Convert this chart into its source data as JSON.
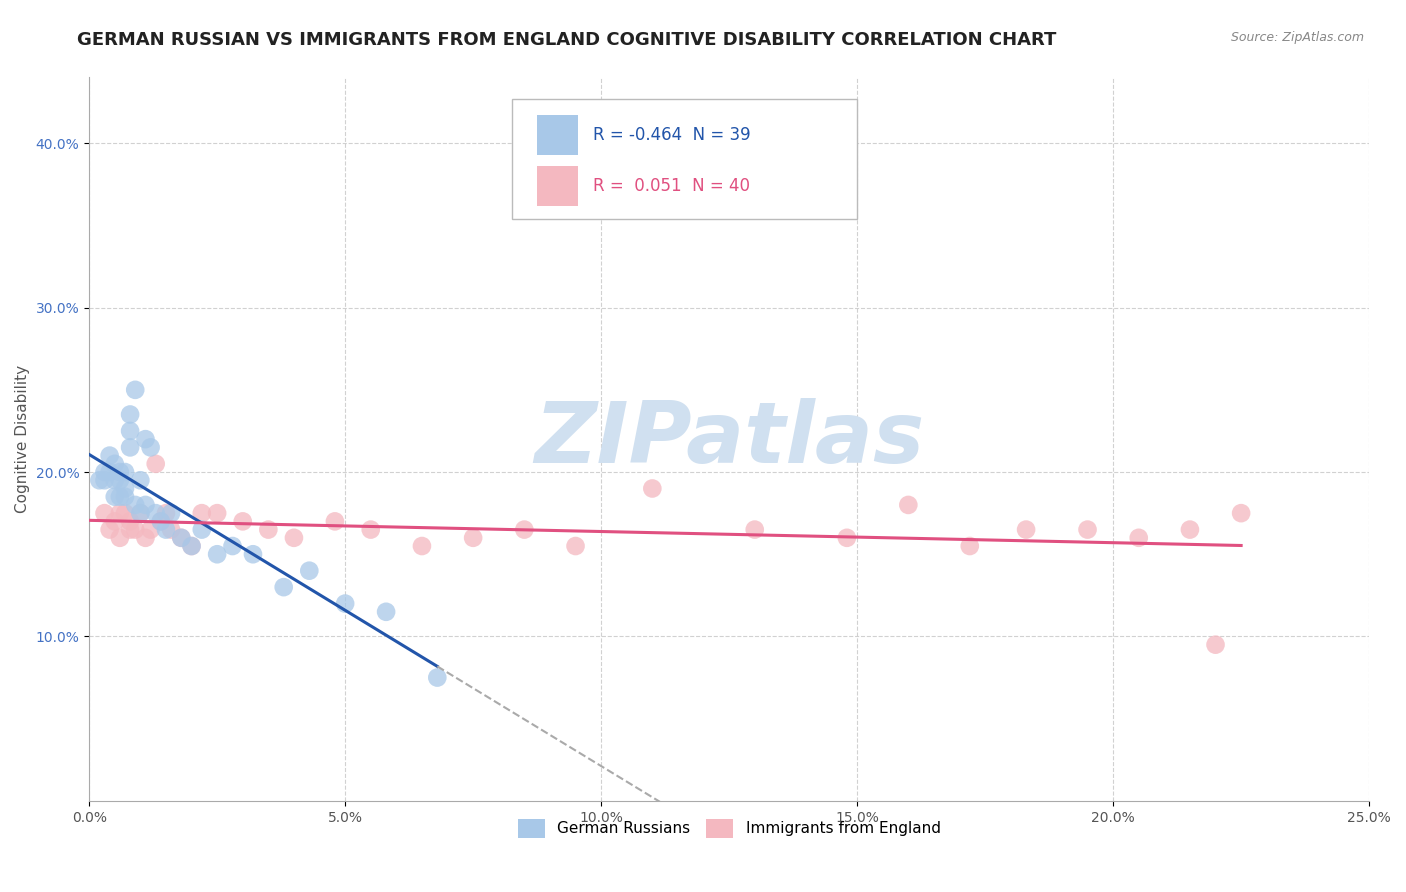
{
  "title": "GERMAN RUSSIAN VS IMMIGRANTS FROM ENGLAND COGNITIVE DISABILITY CORRELATION CHART",
  "source": "Source: ZipAtlas.com",
  "xlabel": "",
  "ylabel": "Cognitive Disability",
  "x_min": 0.0,
  "x_max": 0.25,
  "y_min": 0.0,
  "y_max": 0.44,
  "y_ticks": [
    0.1,
    0.2,
    0.3,
    0.4
  ],
  "y_tick_labels": [
    "10.0%",
    "20.0%",
    "30.0%",
    "40.0%"
  ],
  "x_ticks": [
    0.0,
    0.05,
    0.1,
    0.15,
    0.2,
    0.25
  ],
  "x_tick_labels": [
    "0.0%",
    "5.0%",
    "10.0%",
    "15.0%",
    "20.0%",
    "25.0%"
  ],
  "blue_color": "#a8c8e8",
  "pink_color": "#f4b8c0",
  "blue_line_color": "#2255aa",
  "pink_line_color": "#e05080",
  "dashed_color": "#aaaaaa",
  "R_blue": -0.464,
  "N_blue": 39,
  "R_pink": 0.051,
  "N_pink": 40,
  "legend_label_blue": "German Russians",
  "legend_label_pink": "Immigrants from England",
  "blue_x": [
    0.002,
    0.003,
    0.003,
    0.004,
    0.004,
    0.005,
    0.005,
    0.005,
    0.006,
    0.006,
    0.006,
    0.007,
    0.007,
    0.007,
    0.008,
    0.008,
    0.008,
    0.009,
    0.009,
    0.01,
    0.01,
    0.011,
    0.011,
    0.012,
    0.013,
    0.014,
    0.015,
    0.016,
    0.018,
    0.02,
    0.022,
    0.025,
    0.028,
    0.032,
    0.038,
    0.043,
    0.05,
    0.058,
    0.068
  ],
  "blue_y": [
    0.195,
    0.2,
    0.195,
    0.2,
    0.21,
    0.205,
    0.195,
    0.185,
    0.2,
    0.185,
    0.195,
    0.2,
    0.19,
    0.185,
    0.235,
    0.225,
    0.215,
    0.25,
    0.18,
    0.195,
    0.175,
    0.22,
    0.18,
    0.215,
    0.175,
    0.17,
    0.165,
    0.175,
    0.16,
    0.155,
    0.165,
    0.15,
    0.155,
    0.15,
    0.13,
    0.14,
    0.12,
    0.115,
    0.075
  ],
  "pink_x": [
    0.003,
    0.004,
    0.005,
    0.006,
    0.006,
    0.007,
    0.008,
    0.008,
    0.009,
    0.01,
    0.011,
    0.012,
    0.013,
    0.014,
    0.015,
    0.016,
    0.018,
    0.02,
    0.022,
    0.025,
    0.03,
    0.035,
    0.04,
    0.048,
    0.055,
    0.065,
    0.075,
    0.085,
    0.095,
    0.11,
    0.13,
    0.148,
    0.16,
    0.172,
    0.183,
    0.195,
    0.205,
    0.215,
    0.22,
    0.225
  ],
  "pink_y": [
    0.175,
    0.165,
    0.17,
    0.175,
    0.16,
    0.175,
    0.165,
    0.17,
    0.165,
    0.175,
    0.16,
    0.165,
    0.205,
    0.17,
    0.175,
    0.165,
    0.16,
    0.155,
    0.175,
    0.175,
    0.17,
    0.165,
    0.16,
    0.17,
    0.165,
    0.155,
    0.16,
    0.165,
    0.155,
    0.19,
    0.165,
    0.16,
    0.18,
    0.155,
    0.165,
    0.165,
    0.16,
    0.165,
    0.095,
    0.175
  ],
  "background_color": "#ffffff",
  "grid_color": "#cccccc",
  "watermark_text": "ZIPatlas",
  "watermark_color": "#d0e0f0",
  "watermark_fontsize": 62,
  "title_fontsize": 13,
  "axis_label_fontsize": 11,
  "tick_fontsize": 10,
  "legend_fontsize": 12
}
